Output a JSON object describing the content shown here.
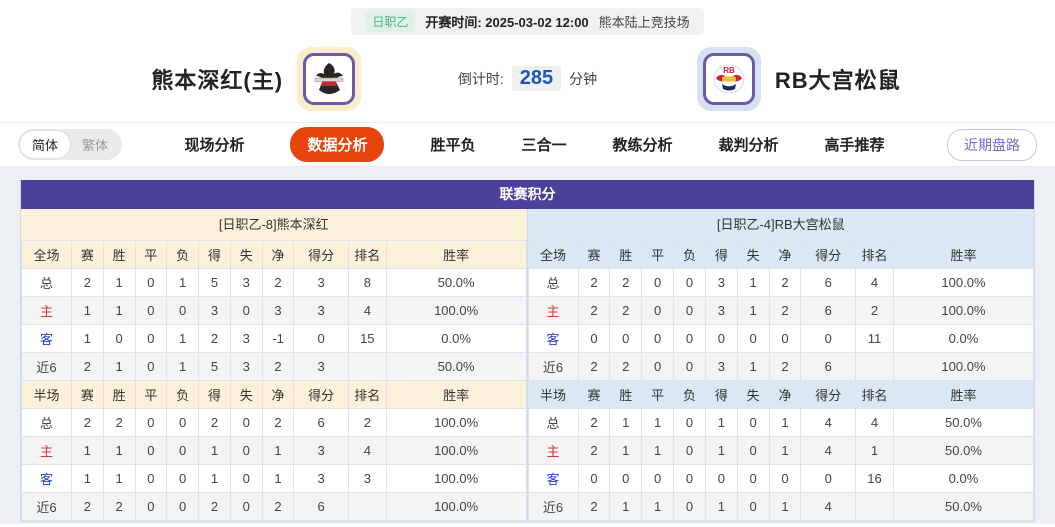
{
  "match_header": {
    "league_badge": "日职乙",
    "kickoff_label": "开赛时间:",
    "kickoff_time": "2025-03-02 12:00",
    "venue": "熊本陆上竞技场",
    "home_team": "熊本深红(主)",
    "away_team": "RB大宫松鼠",
    "countdown_label": "倒计时:",
    "countdown_value": "285",
    "countdown_unit": "分钟"
  },
  "nav": {
    "lang_simplified": "简体",
    "lang_traditional": "繁体",
    "tabs": [
      "现场分析",
      "数据分析",
      "胜平负",
      "三合一",
      "教练分析",
      "裁判分析",
      "高手推荐"
    ],
    "active_tab": "数据分析",
    "recent_button": "近期盘路"
  },
  "league_table": {
    "title": "联赛积分",
    "home": {
      "subtitle": "[日职乙-8]熊本深红",
      "sections": [
        {
          "headers": [
            "全场",
            "赛",
            "胜",
            "平",
            "负",
            "得",
            "失",
            "净",
            "得分",
            "排名",
            "胜率"
          ],
          "rows": [
            {
              "label": "总",
              "type": "total",
              "cells": [
                "2",
                "1",
                "0",
                "1",
                "5",
                "3",
                "2",
                "3",
                "8",
                "50.0%"
              ]
            },
            {
              "label": "主",
              "type": "home",
              "cells": [
                "1",
                "1",
                "0",
                "0",
                "3",
                "0",
                "3",
                "3",
                "4",
                "100.0%"
              ]
            },
            {
              "label": "客",
              "type": "away",
              "cells": [
                "1",
                "0",
                "0",
                "1",
                "2",
                "3",
                "-1",
                "0",
                "15",
                "0.0%"
              ]
            },
            {
              "label": "近6",
              "type": "recent",
              "cells": [
                "2",
                "1",
                "0",
                "1",
                "5",
                "3",
                "2",
                "3",
                "",
                "50.0%"
              ]
            }
          ]
        },
        {
          "headers": [
            "半场",
            "赛",
            "胜",
            "平",
            "负",
            "得",
            "失",
            "净",
            "得分",
            "排名",
            "胜率"
          ],
          "rows": [
            {
              "label": "总",
              "type": "total",
              "cells": [
                "2",
                "2",
                "0",
                "0",
                "2",
                "0",
                "2",
                "6",
                "2",
                "100.0%"
              ]
            },
            {
              "label": "主",
              "type": "home",
              "cells": [
                "1",
                "1",
                "0",
                "0",
                "1",
                "0",
                "1",
                "3",
                "4",
                "100.0%"
              ]
            },
            {
              "label": "客",
              "type": "away",
              "cells": [
                "1",
                "1",
                "0",
                "0",
                "1",
                "0",
                "1",
                "3",
                "3",
                "100.0%"
              ]
            },
            {
              "label": "近6",
              "type": "recent",
              "cells": [
                "2",
                "2",
                "0",
                "0",
                "2",
                "0",
                "2",
                "6",
                "",
                "100.0%"
              ]
            }
          ]
        }
      ]
    },
    "away": {
      "subtitle": "[日职乙-4]RB大宫松鼠",
      "sections": [
        {
          "headers": [
            "全场",
            "赛",
            "胜",
            "平",
            "负",
            "得",
            "失",
            "净",
            "得分",
            "排名",
            "胜率"
          ],
          "rows": [
            {
              "label": "总",
              "type": "total",
              "cells": [
                "2",
                "2",
                "0",
                "0",
                "3",
                "1",
                "2",
                "6",
                "4",
                "100.0%"
              ]
            },
            {
              "label": "主",
              "type": "home",
              "cells": [
                "2",
                "2",
                "0",
                "0",
                "3",
                "1",
                "2",
                "6",
                "2",
                "100.0%"
              ]
            },
            {
              "label": "客",
              "type": "away",
              "cells": [
                "0",
                "0",
                "0",
                "0",
                "0",
                "0",
                "0",
                "0",
                "11",
                "0.0%"
              ]
            },
            {
              "label": "近6",
              "type": "recent",
              "cells": [
                "2",
                "2",
                "0",
                "0",
                "3",
                "1",
                "2",
                "6",
                "",
                "100.0%"
              ]
            }
          ]
        },
        {
          "headers": [
            "半场",
            "赛",
            "胜",
            "平",
            "负",
            "得",
            "失",
            "净",
            "得分",
            "排名",
            "胜率"
          ],
          "rows": [
            {
              "label": "总",
              "type": "total",
              "cells": [
                "2",
                "1",
                "1",
                "0",
                "1",
                "0",
                "1",
                "4",
                "4",
                "50.0%"
              ]
            },
            {
              "label": "主",
              "type": "home",
              "cells": [
                "2",
                "1",
                "1",
                "0",
                "1",
                "0",
                "1",
                "4",
                "1",
                "50.0%"
              ]
            },
            {
              "label": "客",
              "type": "away",
              "cells": [
                "0",
                "0",
                "0",
                "0",
                "0",
                "0",
                "0",
                "0",
                "16",
                "0.0%"
              ]
            },
            {
              "label": "近6",
              "type": "recent",
              "cells": [
                "2",
                "1",
                "1",
                "0",
                "1",
                "0",
                "1",
                "4",
                "",
                "50.0%"
              ]
            }
          ]
        }
      ]
    }
  },
  "icons": {
    "home_logo": "kumamoto-horse-crest-icon",
    "away_logo": "rb-omiya-bulls-crest-icon"
  },
  "colors": {
    "accent_orange": "#e8440e",
    "title_purple": "#4c4199",
    "home_cream": "#fcf2dc",
    "away_lightblue": "#dbe8f3",
    "badge_green_text": "#47b27c",
    "badge_green_bg": "#e0f2e8",
    "countdown_blue": "#1b55c0",
    "home_row_red": "#d23a3a",
    "away_row_blue": "#2b3fd0",
    "recent_btn_purple": "#7668cf"
  }
}
